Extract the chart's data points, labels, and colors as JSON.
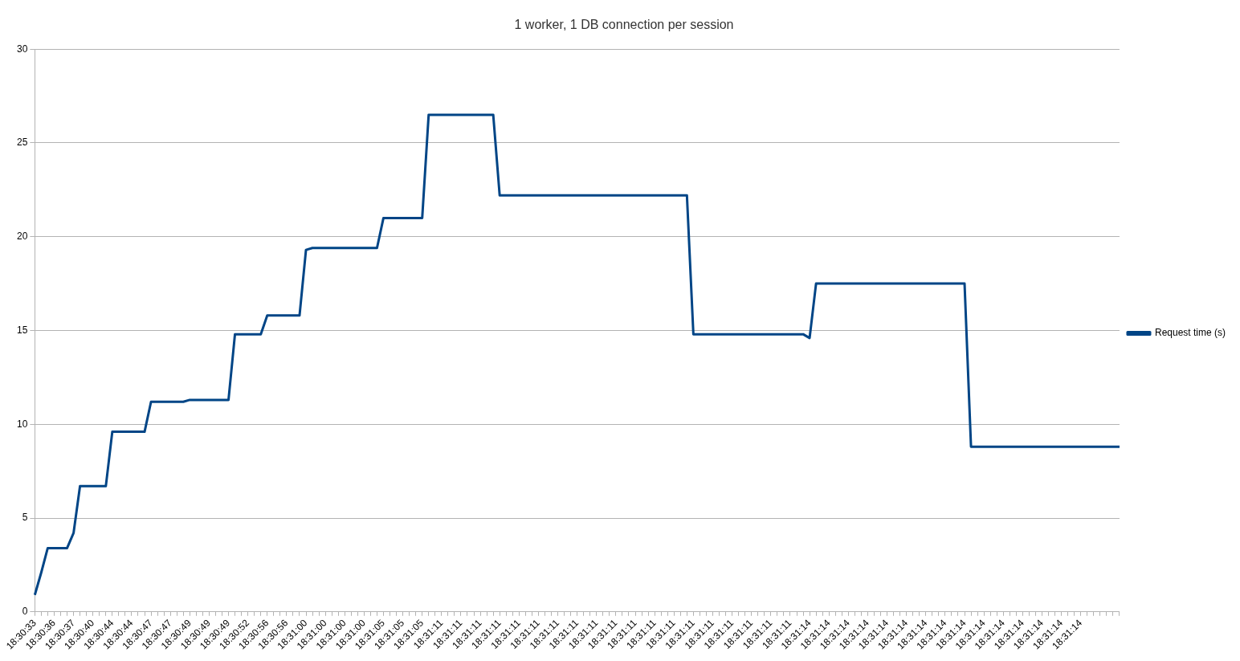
{
  "chart_data": {
    "type": "line",
    "title": "1 worker, 1 DB connection per session",
    "categories": [
      "18:30:33",
      null,
      null,
      "18:30:36",
      null,
      null,
      "18:30:37",
      null,
      null,
      "18:30:40",
      null,
      null,
      "18:30:44",
      null,
      null,
      "18:30:44",
      null,
      null,
      "18:30:47",
      null,
      null,
      "18:30:47",
      null,
      null,
      "18:30:49",
      null,
      null,
      "18:30:49",
      null,
      null,
      "18:30:49",
      null,
      null,
      "18:30:52",
      null,
      null,
      "18:30:56",
      null,
      null,
      "18:30:56",
      null,
      null,
      "18:31:00",
      null,
      null,
      "18:31:00",
      null,
      null,
      "18:31:00",
      null,
      null,
      "18:31:00",
      null,
      null,
      "18:31:05",
      null,
      null,
      "18:31:05",
      null,
      null,
      "18:31:05",
      null,
      null,
      "18:31:11",
      null,
      null,
      "18:31:11",
      null,
      null,
      "18:31:11",
      null,
      null,
      "18:31:11",
      null,
      null,
      "18:31:11",
      null,
      null,
      "18:31:11",
      null,
      null,
      "18:31:11",
      null,
      null,
      "18:31:11",
      null,
      null,
      "18:31:11",
      null,
      null,
      "18:31:11",
      null,
      null,
      "18:31:11",
      null,
      null,
      "18:31:11",
      null,
      null,
      "18:31:11",
      null,
      null,
      "18:31:11",
      null,
      null,
      "18:31:11",
      null,
      null,
      "18:31:11",
      null,
      null,
      "18:31:11",
      null,
      null,
      "18:31:11",
      null,
      null,
      "18:31:11",
      null,
      null,
      "18:31:14",
      null,
      null,
      "18:31:14",
      null,
      null,
      "18:31:14",
      null,
      null,
      "18:31:14",
      null,
      null,
      "18:31:14",
      null,
      null,
      "18:31:14",
      null,
      null,
      "18:31:14",
      null,
      null,
      "18:31:14",
      null,
      null,
      "18:31:14",
      null,
      null,
      "18:31:14",
      null,
      null,
      "18:31:14",
      null,
      null,
      "18:31:14",
      null,
      null,
      "18:31:14",
      null,
      null,
      "18:31:14",
      null,
      null,
      "18:31:14",
      null,
      null,
      null,
      null,
      null,
      null
    ],
    "series": [
      {
        "name": "Request time (s)",
        "color": "#004586",
        "values": [
          0.9,
          2.1,
          3.4,
          3.4,
          3.4,
          3.4,
          4.2,
          6.7,
          6.7,
          6.7,
          6.7,
          6.7,
          9.6,
          9.6,
          9.6,
          9.6,
          9.6,
          9.6,
          11.2,
          11.2,
          11.2,
          11.2,
          11.2,
          11.2,
          11.3,
          11.3,
          11.3,
          11.3,
          11.3,
          11.3,
          11.3,
          14.8,
          14.8,
          14.8,
          14.8,
          14.8,
          15.8,
          15.8,
          15.8,
          15.8,
          15.8,
          15.8,
          19.3,
          19.4,
          19.4,
          19.4,
          19.4,
          19.4,
          19.4,
          19.4,
          19.4,
          19.4,
          19.4,
          19.4,
          21.0,
          21.0,
          21.0,
          21.0,
          21.0,
          21.0,
          21.0,
          26.5,
          26.5,
          26.5,
          26.5,
          26.5,
          26.5,
          26.5,
          26.5,
          26.5,
          26.5,
          26.5,
          22.2,
          22.2,
          22.2,
          22.2,
          22.2,
          22.2,
          22.2,
          22.2,
          22.2,
          22.2,
          22.2,
          22.2,
          22.2,
          22.2,
          22.2,
          22.2,
          22.2,
          22.2,
          22.2,
          22.2,
          22.2,
          22.2,
          22.2,
          22.2,
          22.2,
          22.2,
          22.2,
          22.2,
          22.2,
          22.2,
          14.8,
          14.8,
          14.8,
          14.8,
          14.8,
          14.8,
          14.8,
          14.8,
          14.8,
          14.8,
          14.8,
          14.8,
          14.8,
          14.8,
          14.8,
          14.8,
          14.8,
          14.8,
          14.6,
          17.5,
          17.5,
          17.5,
          17.5,
          17.5,
          17.5,
          17.5,
          17.5,
          17.5,
          17.5,
          17.5,
          17.5,
          17.5,
          17.5,
          17.5,
          17.5,
          17.5,
          17.5,
          17.5,
          17.5,
          17.5,
          17.5,
          17.5,
          17.5,
          8.8,
          8.8,
          8.8,
          8.8,
          8.8,
          8.8,
          8.8,
          8.8,
          8.8,
          8.8,
          8.8,
          8.8,
          8.8,
          8.8,
          8.8,
          8.8,
          8.8,
          8.8,
          8.8,
          8.8,
          8.8,
          8.8,
          8.8,
          8.8
        ]
      }
    ],
    "ylim": [
      0,
      30
    ],
    "yticks": [
      0,
      5,
      10,
      15,
      20,
      25,
      30
    ],
    "grid": "y",
    "legend": "right",
    "marker": "none",
    "line_style": "solid"
  }
}
